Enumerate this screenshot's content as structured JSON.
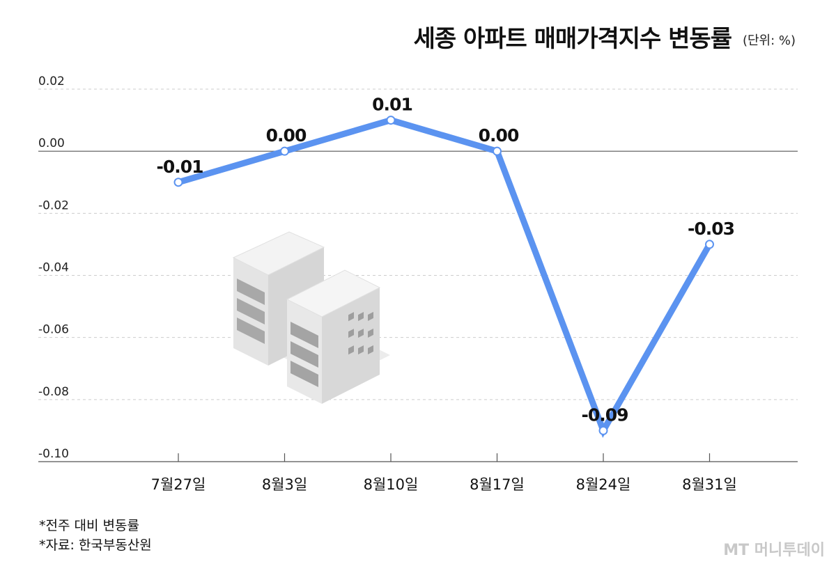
{
  "header": {
    "title": "세종 아파트 매매가격지수 변동률",
    "unit": "(단위: %)"
  },
  "notes": [
    "*전주 대비 변동률",
    "*자료: 한국부동산원"
  ],
  "watermark": "MT 머니투데이",
  "colors": {
    "line": "#5b93f0",
    "axis": "#555555",
    "grid": "#cccccc",
    "building": "#b5b5b5"
  },
  "illustration": "apartment-buildings-icon",
  "chart_data": {
    "type": "line",
    "categories": [
      "7월27일",
      "8월3일",
      "8월10일",
      "8월17일",
      "8월24일",
      "8월31일"
    ],
    "values": [
      -0.01,
      0.0,
      0.01,
      0.0,
      -0.09,
      -0.03
    ],
    "value_labels": [
      "-0.01",
      "0.00",
      "0.01",
      "0.00",
      "-0.09",
      "-0.03"
    ],
    "yticks": [
      "0.02",
      "0.00",
      "-0.02",
      "-0.04",
      "-0.06",
      "-0.08",
      "-0.10"
    ],
    "ylim": [
      -0.1,
      0.02
    ],
    "grid": true
  }
}
